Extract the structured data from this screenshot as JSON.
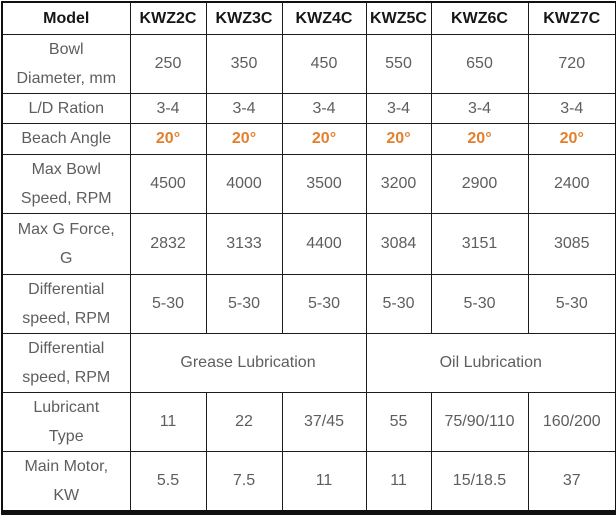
{
  "colors": {
    "header_text": "#161616",
    "body_text": "#5e5e5e",
    "accent_orange": "#e2802f",
    "grid_border": "#1c1c1c"
  },
  "table": {
    "columns": [
      "Model",
      "KWZ2C",
      "KWZ3C",
      "KWZ4C",
      "KWZ5C",
      "KWZ6C",
      "KWZ7C"
    ],
    "rows": [
      {
        "label": "Bowl\nDiameter, mm",
        "cells": [
          "250",
          "350",
          "450",
          "550",
          "650",
          "720"
        ]
      },
      {
        "label": "L/D Ration",
        "cells": [
          "3-4",
          "3-4",
          "3-4",
          "3-4",
          "3-4",
          "3-4"
        ]
      },
      {
        "label": "Beach Angle",
        "accent": true,
        "cells": [
          "20°",
          "20°",
          "20°",
          "20°",
          "20°",
          "20°"
        ]
      },
      {
        "label": "Max Bowl\nSpeed, RPM",
        "cells": [
          "4500",
          "4000",
          "3500",
          "3200",
          "2900",
          "2400"
        ]
      },
      {
        "label": "Max G Force,\nG",
        "cells": [
          "2832",
          "3133",
          "4400",
          "3084",
          "3151",
          "3085"
        ]
      },
      {
        "label": "Differential\nspeed, RPM",
        "cells": [
          "5-30",
          "5-30",
          "5-30",
          "5-30",
          "5-30",
          "5-30"
        ]
      },
      {
        "label": "Differential\nspeed, RPM",
        "spans": [
          {
            "text": "Grease Lubrication",
            "colspan": 3
          },
          {
            "text": "Oil Lubrication",
            "colspan": 3
          }
        ]
      },
      {
        "label": "Lubricant\nType",
        "cells": [
          "11",
          "22",
          "37/45",
          "55",
          "75/90/110",
          "160/200"
        ]
      },
      {
        "label": "Main Motor,\nKW",
        "cells": [
          "5.5",
          "7.5",
          "11",
          "11",
          "15/18.5",
          "37"
        ]
      }
    ]
  }
}
